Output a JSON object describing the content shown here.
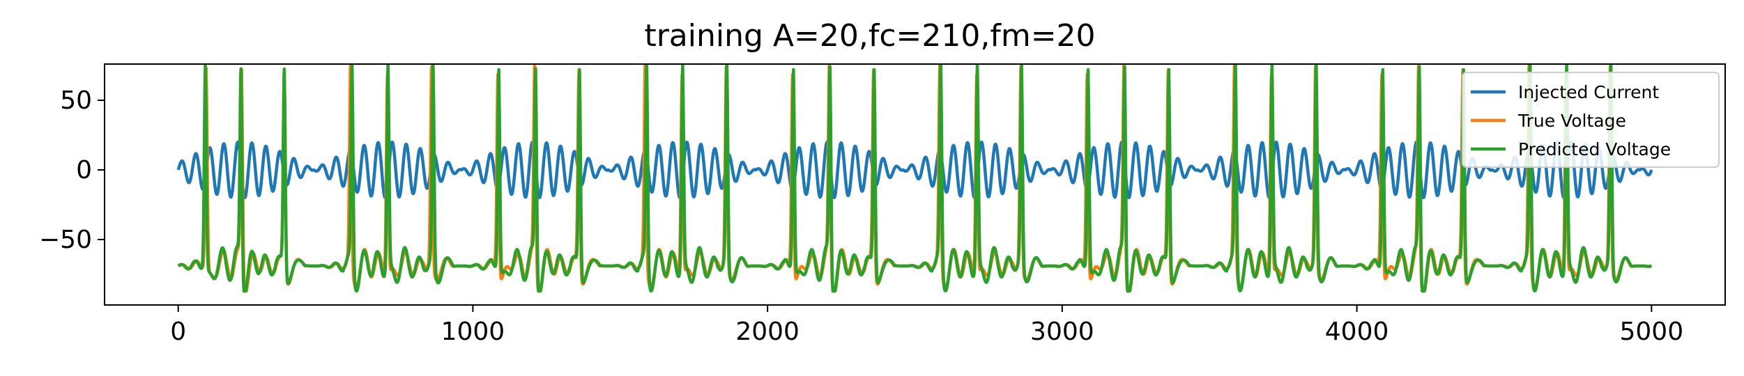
{
  "chart_data": {
    "type": "line",
    "title": "training A=20,fc=210,fm=20",
    "xlabel": "",
    "ylabel": "",
    "xlim": [
      -250,
      5250
    ],
    "ylim": [
      -97,
      76
    ],
    "x_ticks": [
      0,
      1000,
      2000,
      3000,
      4000,
      5000
    ],
    "x_tick_labels": [
      "0",
      "1000",
      "2000",
      "3000",
      "4000",
      "5000"
    ],
    "y_ticks": [
      50,
      0,
      -50
    ],
    "y_tick_labels": [
      "50",
      "0",
      "−50"
    ],
    "grid": false,
    "legend_position": "top-right",
    "signal": {
      "x_start": 0,
      "x_end": 5000,
      "carrier_frequency_cycles_per_unit": 0.021,
      "envelope_period": 500,
      "injected_current_amplitude": 20,
      "rest_potential": -69,
      "spike_peak_true": 65,
      "spike_peak_predicted": 67,
      "trough_min": -87,
      "spike_times_true": [
        95,
        215,
        360,
        585,
        710,
        860,
        1085,
        1210,
        1360,
        1585,
        1710,
        1860,
        2085,
        2210,
        2360,
        2585,
        2710,
        2860,
        3085,
        3210,
        3360,
        3585,
        3710,
        3860,
        4085,
        4210,
        4360,
        4585,
        4710,
        4860
      ],
      "spike_times_predicted": [
        92,
        213,
        360,
        590,
        712,
        865,
        1088,
        1213,
        1362,
        1590,
        1712,
        1862,
        2088,
        2212,
        2362,
        2588,
        2712,
        2862,
        3088,
        3212,
        3362,
        3588,
        3712,
        3862,
        4088,
        4212,
        4362,
        4588,
        4712,
        4862
      ]
    },
    "series": [
      {
        "name": "Injected Current",
        "color": "#1f77b4"
      },
      {
        "name": "True Voltage",
        "color": "#ff7f0e"
      },
      {
        "name": "Predicted Voltage",
        "color": "#2ca02c"
      }
    ]
  }
}
